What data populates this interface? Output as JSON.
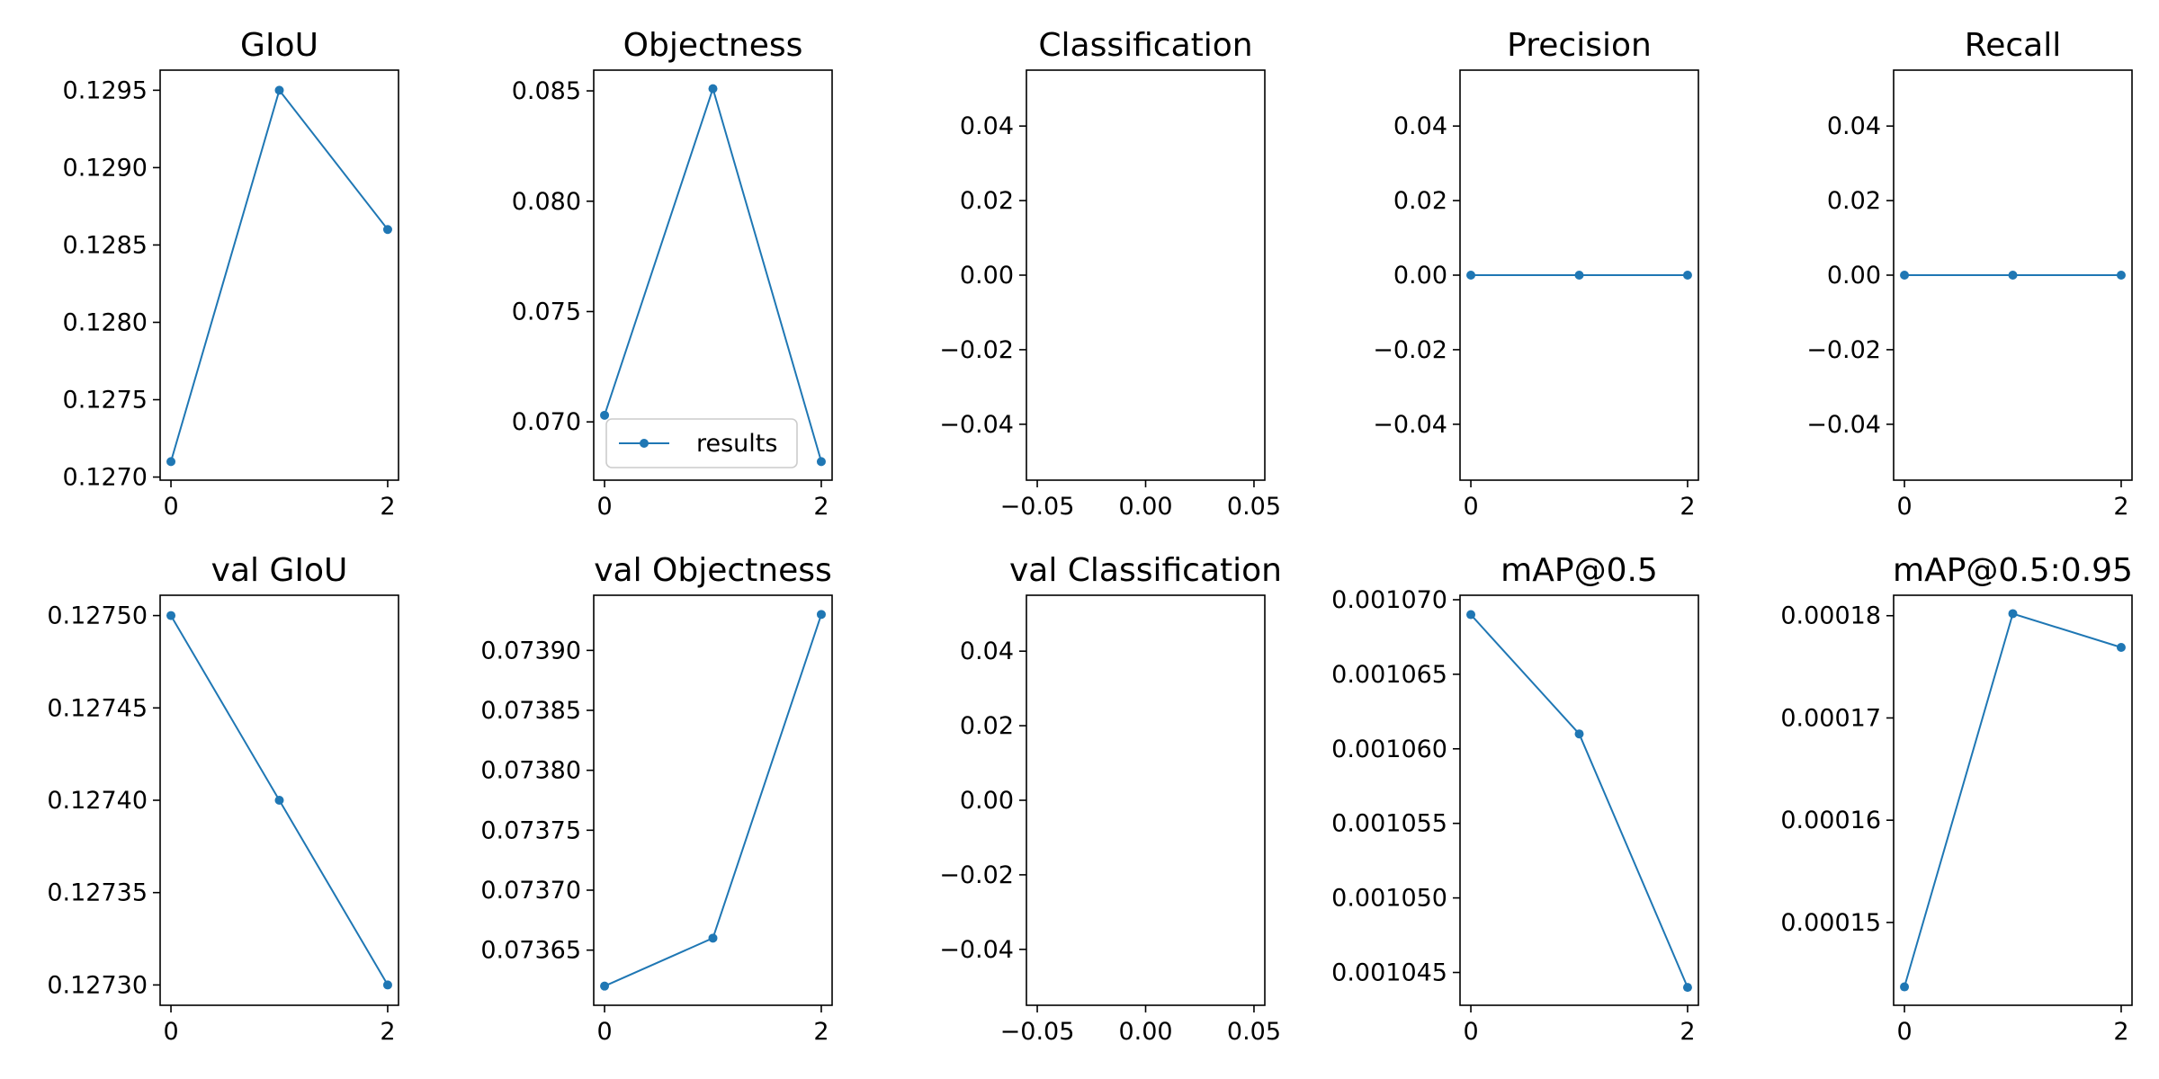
{
  "series_color": "#1f77b4",
  "chart_data": [
    {
      "type": "line",
      "title": "GIoU",
      "x": [
        0,
        1,
        2
      ],
      "y": [
        0.1271,
        0.1295,
        0.1286
      ],
      "xlim": [
        -0.1,
        2.1
      ],
      "ylim": [
        0.12698,
        0.12963
      ],
      "xticks": [
        0,
        2
      ],
      "xtick_labels": [
        "0",
        "2"
      ],
      "yticks": [
        0.127,
        0.1275,
        0.128,
        0.1285,
        0.129,
        0.1295
      ],
      "ytick_labels": [
        "0.1270",
        "0.1275",
        "0.1280",
        "0.1285",
        "0.1290",
        "0.1295"
      ]
    },
    {
      "type": "line",
      "title": "Objectness",
      "x": [
        0,
        1,
        2
      ],
      "y": [
        0.0703,
        0.0851,
        0.0682
      ],
      "xlim": [
        -0.1,
        2.1
      ],
      "ylim": [
        0.06736,
        0.08594
      ],
      "xticks": [
        0,
        2
      ],
      "xtick_labels": [
        "0",
        "2"
      ],
      "yticks": [
        0.07,
        0.075,
        0.08,
        0.085
      ],
      "ytick_labels": [
        "0.070",
        "0.075",
        "0.080",
        "0.085"
      ],
      "legend": {
        "label": "results",
        "placement": "lower-left"
      }
    },
    {
      "type": "line",
      "title": "Classification",
      "x": [],
      "y": [],
      "xlim": [
        -0.055,
        0.055
      ],
      "ylim": [
        -0.055,
        0.055
      ],
      "xticks": [
        -0.05,
        0,
        0.05
      ],
      "xtick_labels": [
        "−0.05",
        "0.00",
        "0.05"
      ],
      "yticks": [
        -0.04,
        -0.02,
        0,
        0.02,
        0.04
      ],
      "ytick_labels": [
        "−0.04",
        "−0.02",
        "0.00",
        "0.02",
        "0.04"
      ]
    },
    {
      "type": "line",
      "title": "Precision",
      "x": [
        0,
        1,
        2
      ],
      "y": [
        0,
        0,
        0
      ],
      "xlim": [
        -0.1,
        2.1
      ],
      "ylim": [
        -0.055,
        0.055
      ],
      "xticks": [
        0,
        2
      ],
      "xtick_labels": [
        "0",
        "2"
      ],
      "yticks": [
        -0.04,
        -0.02,
        0,
        0.02,
        0.04
      ],
      "ytick_labels": [
        "−0.04",
        "−0.02",
        "0.00",
        "0.02",
        "0.04"
      ]
    },
    {
      "type": "line",
      "title": "Recall",
      "x": [
        0,
        1,
        2
      ],
      "y": [
        0,
        0,
        0
      ],
      "xlim": [
        -0.1,
        2.1
      ],
      "ylim": [
        -0.055,
        0.055
      ],
      "xticks": [
        0,
        2
      ],
      "xtick_labels": [
        "0",
        "2"
      ],
      "yticks": [
        -0.04,
        -0.02,
        0,
        0.02,
        0.04
      ],
      "ytick_labels": [
        "−0.04",
        "−0.02",
        "0.00",
        "0.02",
        "0.04"
      ]
    },
    {
      "type": "line",
      "title": "val GIoU",
      "x": [
        0,
        1,
        2
      ],
      "y": [
        0.1275,
        0.1274,
        0.1273
      ],
      "xlim": [
        -0.1,
        2.1
      ],
      "ylim": [
        0.127289,
        0.127511
      ],
      "xticks": [
        0,
        2
      ],
      "xtick_labels": [
        "0",
        "2"
      ],
      "yticks": [
        0.1273,
        0.12735,
        0.1274,
        0.12745,
        0.1275
      ],
      "ytick_labels": [
        "0.12730",
        "0.12735",
        "0.12740",
        "0.12745",
        "0.12750"
      ]
    },
    {
      "type": "line",
      "title": "val Objectness",
      "x": [
        0,
        1,
        2
      ],
      "y": [
        0.07362,
        0.07366,
        0.07393
      ],
      "xlim": [
        -0.1,
        2.1
      ],
      "ylim": [
        0.073604,
        0.073946
      ],
      "xticks": [
        0,
        2
      ],
      "xtick_labels": [
        "0",
        "2"
      ],
      "yticks": [
        0.07365,
        0.0737,
        0.07375,
        0.0738,
        0.07385,
        0.0739
      ],
      "ytick_labels": [
        "0.07365",
        "0.07370",
        "0.07375",
        "0.07380",
        "0.07385",
        "0.07390"
      ]
    },
    {
      "type": "line",
      "title": "val Classification",
      "x": [],
      "y": [],
      "xlim": [
        -0.055,
        0.055
      ],
      "ylim": [
        -0.055,
        0.055
      ],
      "xticks": [
        -0.05,
        0,
        0.05
      ],
      "xtick_labels": [
        "−0.05",
        "0.00",
        "0.05"
      ],
      "yticks": [
        -0.04,
        -0.02,
        0,
        0.02,
        0.04
      ],
      "ytick_labels": [
        "−0.04",
        "−0.02",
        "0.00",
        "0.02",
        "0.04"
      ]
    },
    {
      "type": "line",
      "title": "mAP@0.5",
      "x": [
        0,
        1,
        2
      ],
      "y": [
        0.001069,
        0.001061,
        0.001044
      ],
      "xlim": [
        -0.1,
        2.1
      ],
      "ylim": [
        0.0010428,
        0.0010703
      ],
      "xticks": [
        0,
        2
      ],
      "xtick_labels": [
        "0",
        "2"
      ],
      "yticks": [
        0.001045,
        0.00105,
        0.001055,
        0.00106,
        0.001065,
        0.00107
      ],
      "ytick_labels": [
        "0.001045",
        "0.001050",
        "0.001055",
        "0.001060",
        "0.001065",
        "0.001070"
      ]
    },
    {
      "type": "line",
      "title": "mAP@0.5:0.95",
      "x": [
        0,
        1,
        2
      ],
      "y": [
        0.0001437,
        0.0001802,
        0.0001769
      ],
      "xlim": [
        -0.1,
        2.1
      ],
      "ylim": [
        0.0001419,
        0.000182
      ],
      "xticks": [
        0,
        2
      ],
      "xtick_labels": [
        "0",
        "2"
      ],
      "yticks": [
        0.00015,
        0.00016,
        0.00017,
        0.00018
      ],
      "ytick_labels": [
        "0.00015",
        "0.00016",
        "0.00017",
        "0.00018"
      ]
    }
  ]
}
